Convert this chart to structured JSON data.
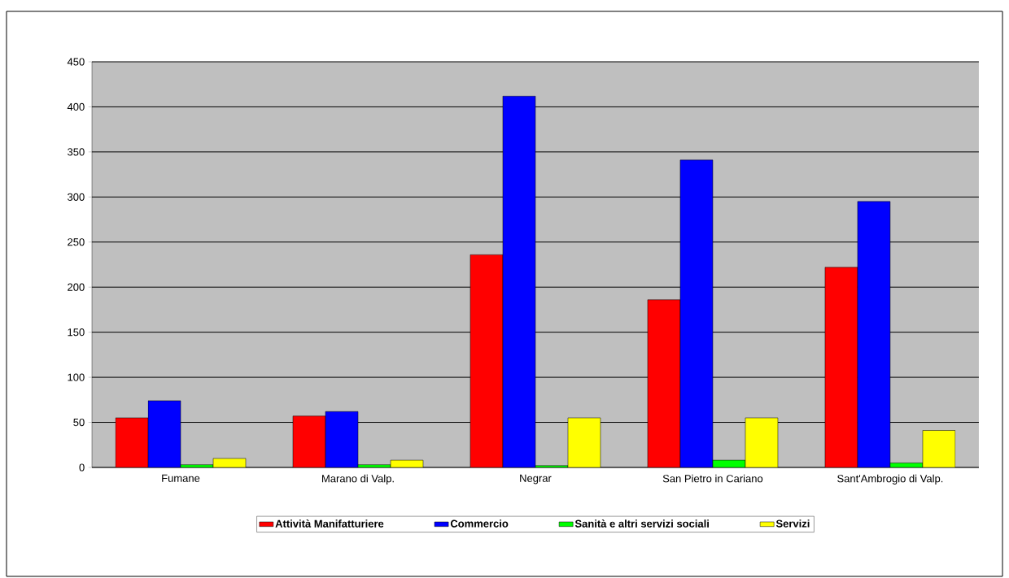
{
  "chart_data": {
    "type": "bar",
    "categories": [
      "Fumane",
      "Marano di Valp.",
      "Negrar",
      "San Pietro in Cariano",
      "Sant'Ambrogio di Valp."
    ],
    "series": [
      {
        "name": "Attività Manifatturiere",
        "color": "#ff0000",
        "values": [
          55,
          57,
          236,
          186,
          222
        ]
      },
      {
        "name": "Commercio",
        "color": "#0000ff",
        "values": [
          74,
          62,
          412,
          341,
          295
        ]
      },
      {
        "name": "Sanità e altri servizi sociali",
        "color": "#00ff00",
        "values": [
          3,
          3,
          2,
          8,
          5
        ]
      },
      {
        "name": "Servizi",
        "color": "#ffff00",
        "values": [
          10,
          8,
          55,
          55,
          41
        ]
      }
    ],
    "ylim": [
      0,
      450
    ],
    "yticks": [
      0,
      50,
      100,
      150,
      200,
      250,
      300,
      350,
      400,
      450
    ],
    "grid": "y",
    "legend": "bottom"
  }
}
